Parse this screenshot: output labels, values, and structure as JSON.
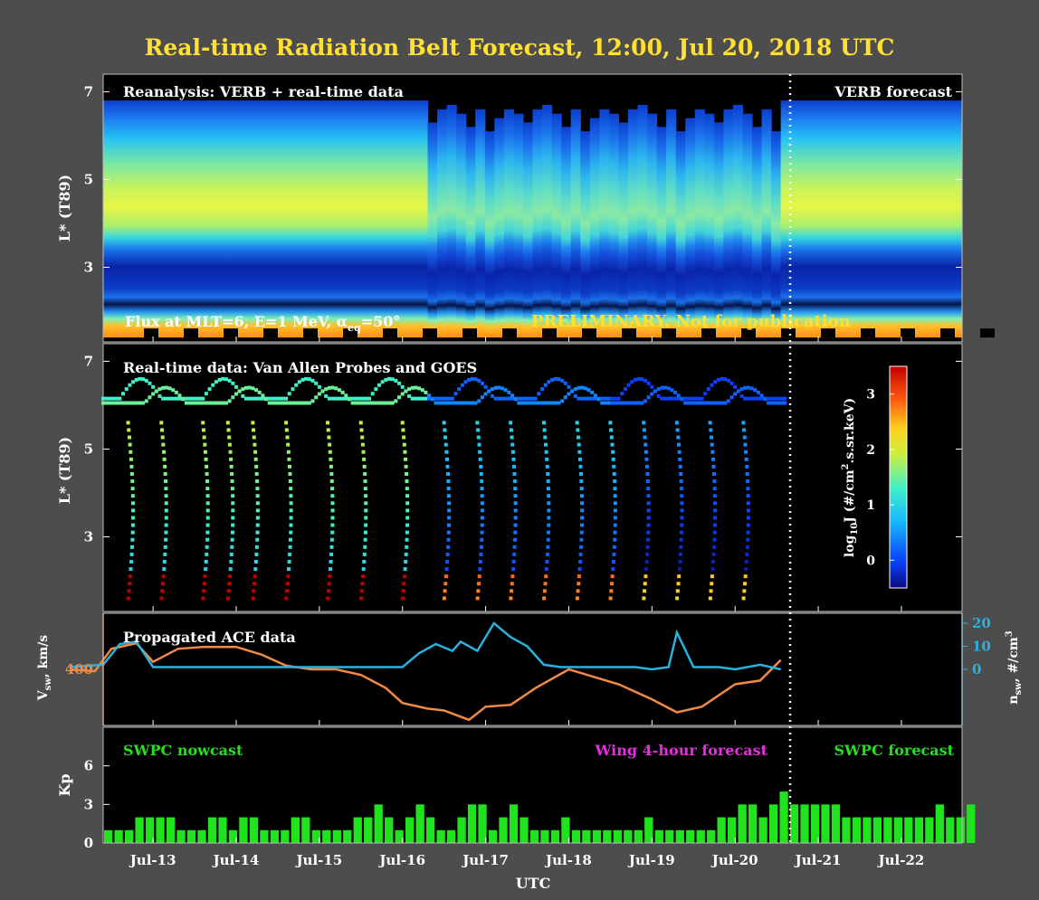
{
  "figure": {
    "title": "Real-time Radiation Belt Forecast, 12:00, Jul 20, 2018 UTC",
    "xlabel": "UTC",
    "x_ticks": [
      "Jul-13",
      "Jul-14",
      "Jul-15",
      "Jul-16",
      "Jul-17",
      "Jul-18",
      "Jul-19",
      "Jul-20",
      "Jul-21",
      "Jul-22"
    ],
    "now_label": "Jul 20, 2018 12:00 UTC"
  },
  "colors": {
    "background": "#4d4d4d",
    "title": "#ffe033",
    "kp_bar": "#21e21f",
    "vsw": "#f08a44",
    "nsw": "#2ab2de",
    "forecast_text": "#e62ee0",
    "preliminary": "#ffe033"
  },
  "chart_data": [
    {
      "type": "heatmap",
      "panel": "reanalysis",
      "label_left": "Reanalysis: VERB + real-time data",
      "label_right": "VERB forecast",
      "caption_prefix": "Flux at MLT=6, E=1 MeV, α",
      "caption_sub": "eq",
      "caption_suffix": "=50°",
      "watermark": "PRELIMINARY. Not for publication",
      "ylabel": "L* (T89)",
      "y_ticks": [
        "3",
        "5",
        "7"
      ],
      "ylim": [
        1.3,
        7.4
      ]
    },
    {
      "type": "scatter",
      "panel": "real-time data",
      "label": "Real-time data: Van Allen Probes and GOES",
      "ylabel": "L* (T89)",
      "y_ticks": [
        "3",
        "5",
        "7"
      ],
      "ylim": [
        1.3,
        7.4
      ],
      "colorbar": {
        "label": "log₁₀J (#/cm².s.sr.keV)",
        "range": [
          -0.5,
          3.5
        ],
        "ticks": [
          "0",
          "1",
          "2",
          "3"
        ]
      }
    },
    {
      "type": "line",
      "panel": "solar wind",
      "label": "Propagated ACE data",
      "ylabel_left": "V_sw, km/s",
      "ylabel_right": "n_sw, #/cm³",
      "y_ticks_left": [
        "400"
      ],
      "y_ticks_right": [
        "0",
        "10",
        "20"
      ],
      "series": [
        {
          "name": "V_sw",
          "x_day": [
            12.0,
            12.3,
            12.5,
            12.8,
            13.0,
            13.3,
            13.6,
            14.0,
            14.3,
            14.6,
            14.9,
            15.2,
            15.5,
            15.8,
            16.0,
            16.3,
            16.5,
            16.8,
            17.0,
            17.3,
            17.6,
            18.0,
            18.3,
            18.6,
            19.0,
            19.3,
            19.6,
            20.0,
            20.3,
            20.55
          ],
          "values": [
            400,
            395,
            455,
            470,
            420,
            455,
            460,
            460,
            440,
            410,
            400,
            400,
            385,
            350,
            310,
            295,
            290,
            265,
            300,
            305,
            350,
            400,
            380,
            360,
            320,
            285,
            300,
            360,
            370,
            425
          ]
        },
        {
          "name": "n_sw",
          "x_day": [
            12.0,
            12.4,
            12.6,
            12.8,
            13.0,
            13.5,
            14.0,
            14.5,
            15.0,
            15.5,
            16.0,
            16.2,
            16.4,
            16.6,
            16.7,
            16.9,
            17.1,
            17.3,
            17.5,
            17.7,
            17.9,
            18.2,
            18.5,
            18.8,
            19.0,
            19.2,
            19.3,
            19.5,
            19.8,
            20.0,
            20.3,
            20.55
          ],
          "values": [
            1,
            2,
            11,
            12,
            1,
            1,
            1,
            1,
            1,
            1,
            1,
            7,
            11,
            8,
            12,
            8,
            20,
            14,
            10,
            2,
            1,
            1,
            1,
            1,
            0,
            1,
            16,
            1,
            1,
            0,
            2,
            0
          ]
        }
      ]
    },
    {
      "type": "bar",
      "panel": "Kp",
      "ylabel": "Kp",
      "y_ticks": [
        "0",
        "3",
        "6"
      ],
      "ylim": [
        0,
        9
      ],
      "labels": {
        "nowcast": "SWPC nowcast",
        "wing": "Wing 4-hour forecast",
        "swpc_forecast": "SWPC forecast"
      },
      "bar_hours": 3,
      "x_start_day": 12.4,
      "nowcast_values": [
        1,
        1,
        1,
        2,
        2,
        2,
        2,
        1,
        1,
        1,
        2,
        2,
        1,
        2,
        2,
        1,
        1,
        1,
        2,
        2,
        1,
        1,
        1,
        1,
        2,
        2,
        3,
        2,
        1,
        2,
        3,
        2,
        1,
        1,
        2,
        3,
        3,
        1,
        2,
        3,
        2,
        1,
        1,
        1,
        2,
        1,
        1,
        1,
        1,
        1,
        1,
        1,
        2,
        1,
        1,
        1,
        1,
        1,
        1,
        2,
        2,
        3,
        3,
        2,
        3,
        4
      ],
      "forecast_values": [
        3,
        3,
        3,
        3,
        3,
        2,
        2,
        2,
        2,
        2,
        2,
        2,
        2,
        2,
        3,
        2,
        2,
        3
      ]
    }
  ]
}
